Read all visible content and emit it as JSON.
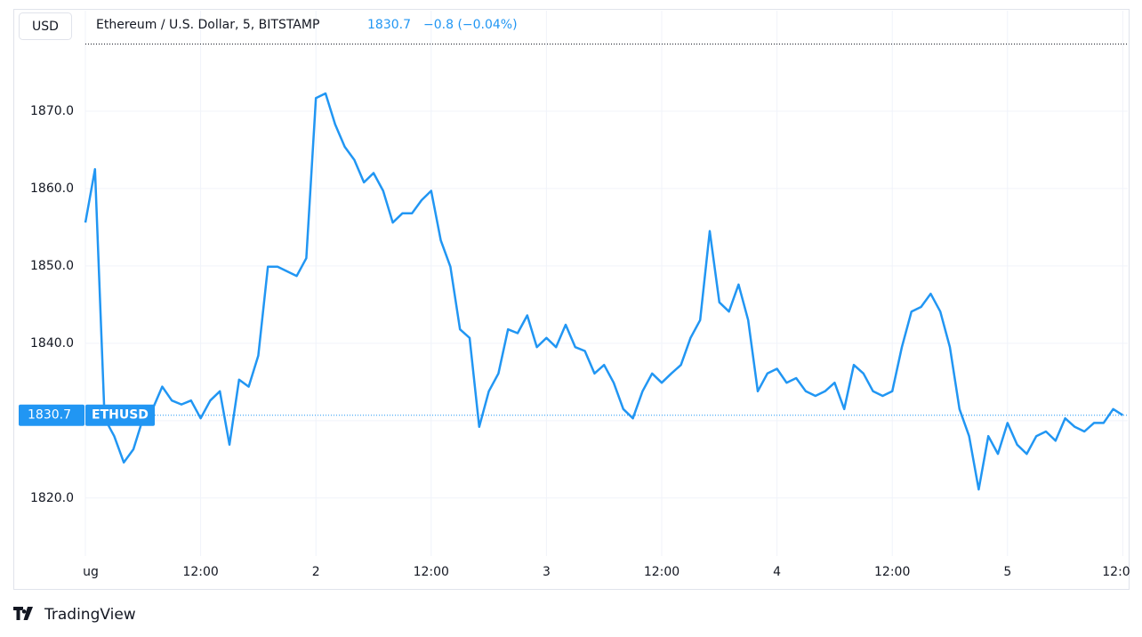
{
  "chart_data": {
    "type": "line",
    "title": "Ethereum / U.S. Dollar, 5, BITSTAMP",
    "currency": "USD",
    "symbol": "ETHUSD",
    "last_price": 1830.7,
    "change_label": "−0.8 (−0.04%)",
    "brand": "TradingView",
    "categories": [
      "ug",
      null,
      null,
      null,
      null,
      null,
      null,
      null,
      null,
      null,
      null,
      null,
      "12:00",
      null,
      null,
      null,
      null,
      null,
      null,
      null,
      null,
      null,
      null,
      null,
      "2",
      null,
      null,
      null,
      null,
      null,
      null,
      null,
      null,
      null,
      null,
      null,
      "12:00",
      null,
      null,
      null,
      null,
      null,
      null,
      null,
      null,
      null,
      null,
      null,
      "3",
      null,
      null,
      null,
      null,
      null,
      null,
      null,
      null,
      null,
      null,
      null,
      "12:00",
      null,
      null,
      null,
      null,
      null,
      null,
      null,
      null,
      null,
      null,
      null,
      "4",
      null,
      null,
      null,
      null,
      null,
      null,
      null,
      null,
      null,
      null,
      null,
      "12:00",
      null,
      null,
      null,
      null,
      null,
      null,
      null,
      null,
      null,
      null,
      null,
      "5",
      null,
      null,
      null,
      null,
      null,
      null,
      null,
      null,
      null,
      null,
      null,
      "12:0"
    ],
    "series": [
      {
        "name": "ETHUSD",
        "color": "#2196f3",
        "values": [
          1855.6,
          1862.5,
          1830.3,
          1828.0,
          1824.6,
          1826.3,
          1830.3,
          1831.5,
          1834.4,
          1832.6,
          1832.1,
          1832.6,
          1830.3,
          1832.6,
          1833.8,
          1826.9,
          1835.3,
          1834.4,
          1838.4,
          1849.9,
          1849.9,
          1849.3,
          1848.7,
          1851.0,
          1871.7,
          1872.3,
          1868.3,
          1865.4,
          1863.7,
          1860.8,
          1862.0,
          1859.7,
          1855.6,
          1856.8,
          1856.8,
          1858.5,
          1859.7,
          1853.3,
          1849.9,
          1841.8,
          1840.7,
          1829.2,
          1833.8,
          1836.1,
          1841.8,
          1841.3,
          1843.6,
          1839.5,
          1840.7,
          1839.5,
          1842.4,
          1839.5,
          1839.0,
          1836.1,
          1837.2,
          1834.9,
          1831.5,
          1830.3,
          1833.8,
          1836.1,
          1834.9,
          1836.1,
          1837.2,
          1840.7,
          1843.0,
          1854.5,
          1845.3,
          1844.1,
          1847.6,
          1843.0,
          1833.8,
          1836.1,
          1836.7,
          1834.9,
          1835.5,
          1833.8,
          1833.2,
          1833.8,
          1834.9,
          1831.5,
          1837.2,
          1836.1,
          1833.8,
          1833.2,
          1833.8,
          1839.5,
          1844.1,
          1844.7,
          1846.4,
          1844.1,
          1839.5,
          1831.5,
          1828.0,
          1821.1,
          1828.0,
          1825.7,
          1829.7,
          1826.9,
          1825.7,
          1828.0,
          1828.6,
          1827.4,
          1830.3,
          1829.2,
          1828.6,
          1829.7,
          1829.7,
          1831.5,
          1830.7
        ]
      }
    ],
    "ylim": [
      1812.5,
      1880
    ],
    "yticks": [
      {
        "value": 1820,
        "label": "1820.0"
      },
      {
        "value": 1830,
        "label": "1830.0"
      },
      {
        "value": 1840,
        "label": "1840.0"
      },
      {
        "value": 1850,
        "label": "1850.0"
      },
      {
        "value": 1860,
        "label": "1860.0"
      },
      {
        "value": 1870,
        "label": "1870.0"
      }
    ],
    "grid": true
  }
}
